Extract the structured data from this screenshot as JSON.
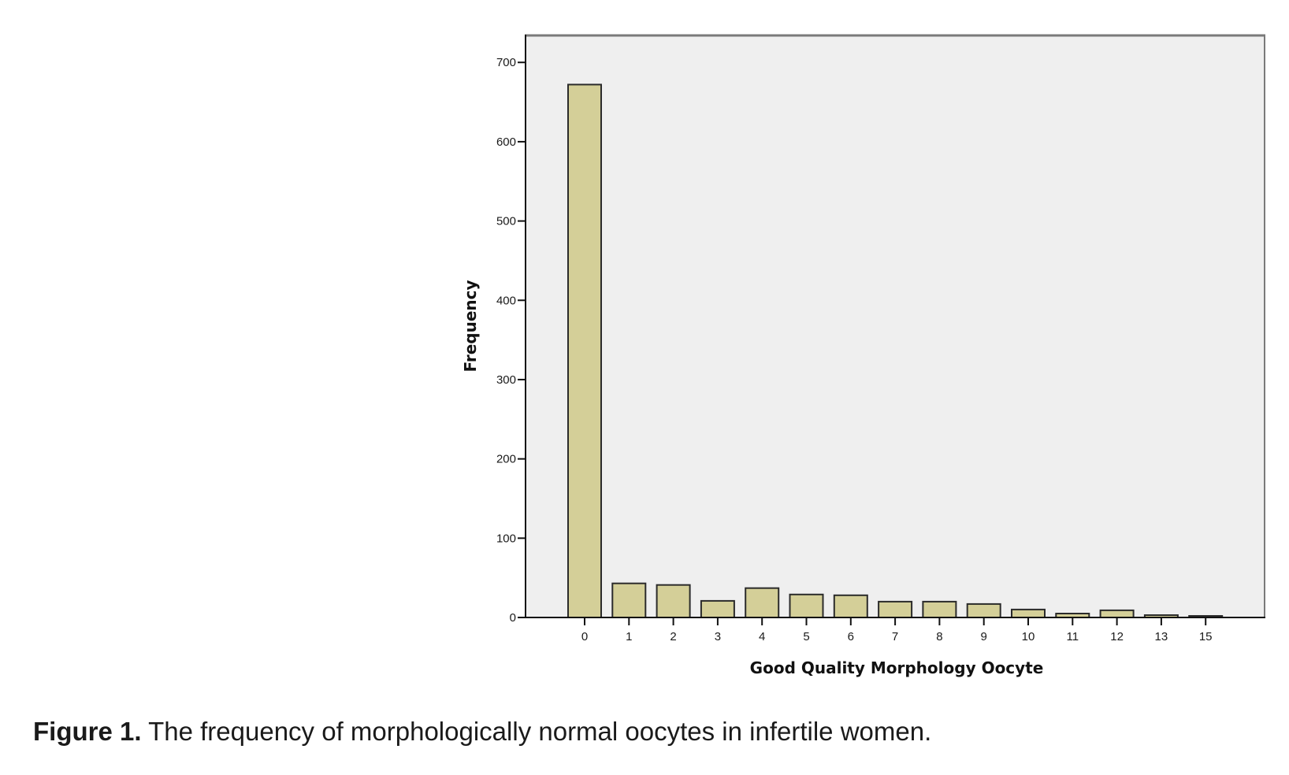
{
  "chart_data": {
    "type": "bar",
    "title": "",
    "xlabel": "Good Quality Morphology Oocyte",
    "ylabel": "Frequency",
    "categories": [
      "0",
      "1",
      "2",
      "3",
      "4",
      "5",
      "6",
      "7",
      "8",
      "9",
      "10",
      "11",
      "12",
      "13",
      "15"
    ],
    "values": [
      672,
      43,
      41,
      21,
      37,
      29,
      28,
      20,
      20,
      17,
      10,
      5,
      9,
      3,
      2
    ],
    "ylim": [
      0,
      735
    ],
    "yticks": [
      0,
      100,
      200,
      300,
      400,
      500,
      600,
      700
    ],
    "grid": false,
    "legend": "none",
    "colors": {
      "bar_fill": "#d4cf98",
      "bar_stroke": "#2b2b2b",
      "plot_bg": "#efefef",
      "frame": "#7a7a7a"
    }
  },
  "caption": {
    "label": "Figure 1.",
    "text": " The frequency of morphologically normal oocytes in infertile women."
  }
}
